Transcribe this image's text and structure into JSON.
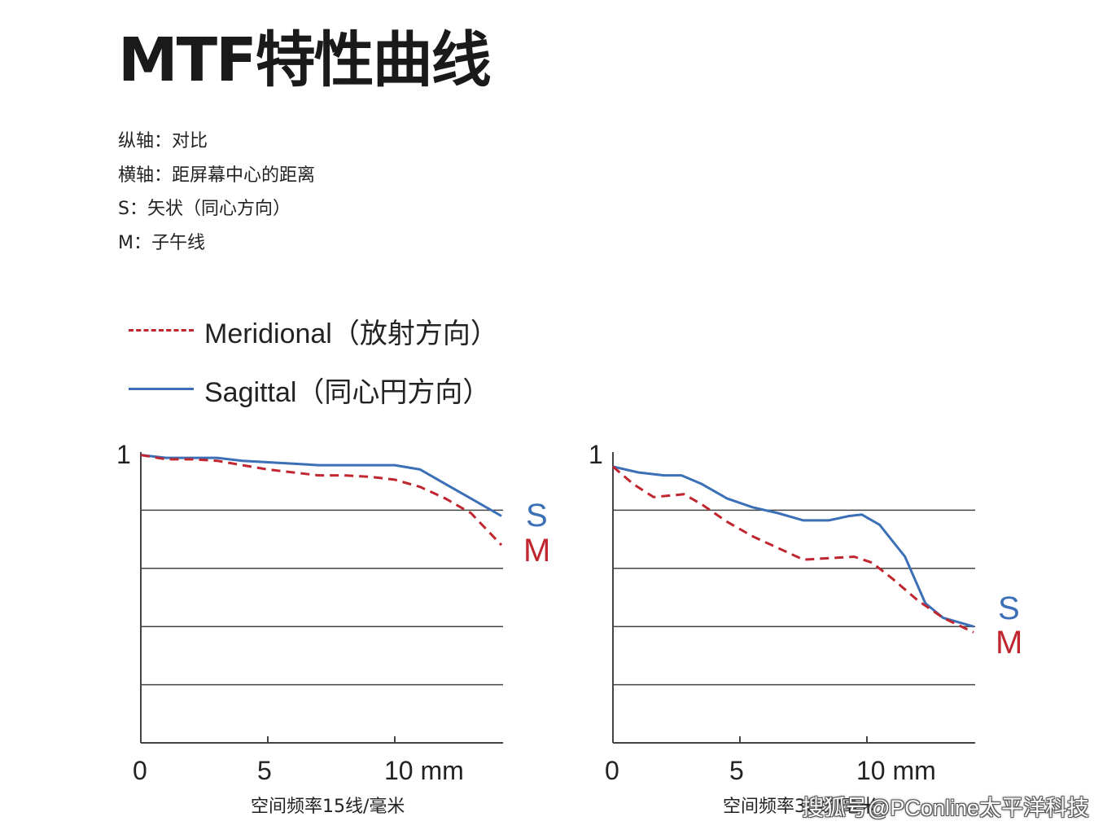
{
  "title": "MTF特性曲线",
  "notes": [
    "纵轴：对比",
    "横轴：距屏幕中心的距离",
    "S：矢状（同心方向）",
    "M：子午线"
  ],
  "legend": [
    {
      "label": "Meridional（放射方向）",
      "style": "dashed",
      "color": "#c0262f"
    },
    {
      "label": "Sagittal（同心円方向）",
      "style": "solid",
      "color": "#3b6fb6"
    }
  ],
  "colors": {
    "meridional": "#c0262f",
    "sagittal": "#3b6fb6",
    "grid": "#444444"
  },
  "chart_data": [
    {
      "type": "line",
      "xlabel": "空间频率15线/毫米",
      "xlim": [
        0,
        14.2
      ],
      "ylim": [
        0,
        1
      ],
      "x_ticks": [
        "0",
        "5",
        "10 mm"
      ],
      "y_ticks": [
        "1"
      ],
      "grid": "horizontal",
      "series": [
        {
          "name": "S",
          "style": "solid",
          "color": "#3b6fb6",
          "x": [
            0,
            1,
            2,
            3,
            4,
            5,
            6,
            7,
            8,
            9,
            10,
            11,
            12,
            13,
            14.2
          ],
          "y": [
            0.99,
            0.98,
            0.98,
            0.98,
            0.97,
            0.965,
            0.96,
            0.955,
            0.955,
            0.955,
            0.955,
            0.94,
            0.89,
            0.84,
            0.78
          ]
        },
        {
          "name": "M",
          "style": "dashed",
          "color": "#c0262f",
          "x": [
            0,
            1,
            2,
            3,
            4,
            5,
            6,
            7,
            8,
            9,
            10,
            11,
            12,
            13,
            14.2
          ],
          "y": [
            0.99,
            0.975,
            0.975,
            0.97,
            0.955,
            0.94,
            0.93,
            0.92,
            0.92,
            0.915,
            0.905,
            0.88,
            0.84,
            0.79,
            0.68
          ]
        }
      ]
    },
    {
      "type": "line",
      "xlabel": "空间频率30线/毫米",
      "xlim": [
        0,
        14.2
      ],
      "ylim": [
        0,
        1
      ],
      "x_ticks": [
        "0",
        "5",
        "10 mm"
      ],
      "y_ticks": [
        "1"
      ],
      "grid": "horizontal",
      "series": [
        {
          "name": "S",
          "style": "solid",
          "color": "#3b6fb6",
          "x": [
            0,
            1,
            2,
            2.7,
            3.5,
            4.5,
            5.5,
            6.5,
            7.5,
            8.5,
            9.3,
            9.8,
            10.5,
            11.5,
            12.3,
            13,
            14.2
          ],
          "y": [
            0.95,
            0.93,
            0.92,
            0.92,
            0.89,
            0.84,
            0.81,
            0.79,
            0.765,
            0.765,
            0.78,
            0.785,
            0.75,
            0.64,
            0.48,
            0.43,
            0.4
          ]
        },
        {
          "name": "M",
          "style": "dashed",
          "color": "#c0262f",
          "x": [
            0,
            0.8,
            1.6,
            2.2,
            2.8,
            3.5,
            4.5,
            5.5,
            6.5,
            7.5,
            8.5,
            9.5,
            10.2,
            11,
            12,
            13,
            14.2
          ],
          "y": [
            0.95,
            0.89,
            0.845,
            0.85,
            0.855,
            0.82,
            0.76,
            0.71,
            0.67,
            0.63,
            0.635,
            0.64,
            0.62,
            0.565,
            0.49,
            0.43,
            0.38
          ]
        }
      ]
    }
  ],
  "curve_labels": {
    "s": "S",
    "m": "M"
  },
  "watermark": "搜狐号@PConline太平洋科技"
}
